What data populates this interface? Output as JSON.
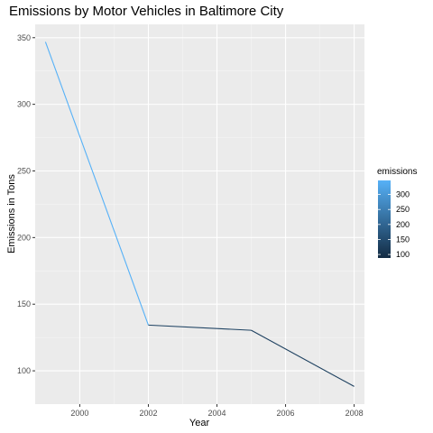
{
  "chart_data": {
    "type": "line",
    "title": "Emissions by Motor Vehicles in Baltimore City",
    "xlabel": "Year",
    "ylabel": "Emissions in Tons",
    "x": [
      1999,
      2002,
      2005,
      2008
    ],
    "series": [
      {
        "values": [
          346.82,
          134.31,
          130.43,
          88.28
        ]
      }
    ],
    "xlim": [
      1998.7,
      2008.3
    ],
    "ylim": [
      75,
      360
    ],
    "xticks": [
      "2000",
      "2002",
      "2004",
      "2006",
      "2008"
    ],
    "yticks": [
      "100",
      "150",
      "200",
      "250",
      "300",
      "350"
    ],
    "color_scale": {
      "title": "emissions",
      "low_color": "#132B43",
      "high_color": "#56B1F7",
      "min": 88.28,
      "max": 346.82,
      "labels": [
        "300",
        "250",
        "200",
        "150",
        "100"
      ]
    },
    "grid": true,
    "legend_position": "right"
  }
}
